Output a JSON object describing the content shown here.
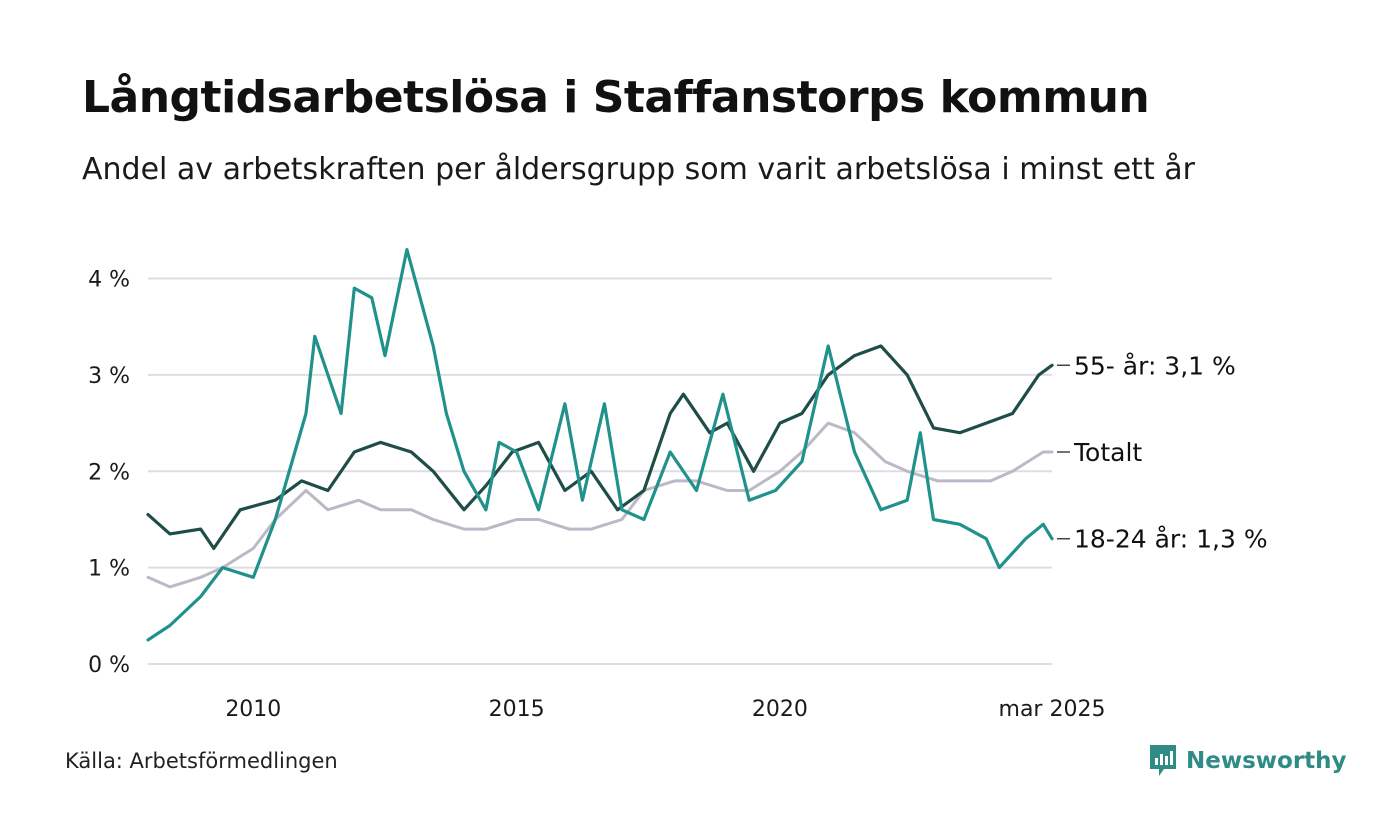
{
  "title": "Långtidsarbetslösa i Staffanstorps kommun",
  "subtitle": "Andel av arbetskraften per åldersgrupp som varit arbetslösa i minst ett år",
  "source": "Källa: Arbetsförmedlingen",
  "brand": "Newsworthy",
  "chart_data": {
    "type": "line",
    "x_start": "2008-01",
    "x_end": "2025-03",
    "x_ticks": [
      {
        "x": "2010-01",
        "label": "2010"
      },
      {
        "x": "2015-01",
        "label": "2015"
      },
      {
        "x": "2020-01",
        "label": "2020"
      },
      {
        "x": "2025-03",
        "label": "mar 2025"
      }
    ],
    "ylim": [
      0,
      4.4
    ],
    "y_ticks": [
      {
        "value": 0,
        "label": "0 %"
      },
      {
        "value": 1,
        "label": "1 %"
      },
      {
        "value": 2,
        "label": "2 %"
      },
      {
        "value": 3,
        "label": "3 %"
      },
      {
        "value": 4,
        "label": "4 %"
      }
    ],
    "grid": true,
    "series": [
      {
        "name": "Totalt",
        "end_label": "Totalt",
        "color": "#bdb8c6",
        "stroke": 3,
        "points": [
          [
            "2008-01",
            0.9
          ],
          [
            "2008-06",
            0.8
          ],
          [
            "2009-01",
            0.9
          ],
          [
            "2009-06",
            1.0
          ],
          [
            "2010-01",
            1.2
          ],
          [
            "2010-06",
            1.5
          ],
          [
            "2011-01",
            1.8
          ],
          [
            "2011-06",
            1.6
          ],
          [
            "2012-01",
            1.7
          ],
          [
            "2012-06",
            1.6
          ],
          [
            "2013-01",
            1.6
          ],
          [
            "2013-06",
            1.5
          ],
          [
            "2014-01",
            1.4
          ],
          [
            "2014-06",
            1.4
          ],
          [
            "2015-01",
            1.5
          ],
          [
            "2015-06",
            1.5
          ],
          [
            "2016-01",
            1.4
          ],
          [
            "2016-06",
            1.4
          ],
          [
            "2017-01",
            1.5
          ],
          [
            "2017-06",
            1.8
          ],
          [
            "2018-01",
            1.9
          ],
          [
            "2018-06",
            1.9
          ],
          [
            "2019-01",
            1.8
          ],
          [
            "2019-06",
            1.8
          ],
          [
            "2020-01",
            2.0
          ],
          [
            "2020-06",
            2.2
          ],
          [
            "2020-12",
            2.5
          ],
          [
            "2021-06",
            2.4
          ],
          [
            "2022-01",
            2.1
          ],
          [
            "2022-06",
            2.0
          ],
          [
            "2023-01",
            1.9
          ],
          [
            "2023-06",
            1.9
          ],
          [
            "2024-01",
            1.9
          ],
          [
            "2024-06",
            2.0
          ],
          [
            "2025-01",
            2.2
          ],
          [
            "2025-03",
            2.2
          ]
        ]
      },
      {
        "name": "55- år",
        "end_label": "55- år: 3,1 %",
        "color": "#1f4d47",
        "stroke": 3.2,
        "points": [
          [
            "2008-01",
            1.55
          ],
          [
            "2008-06",
            1.35
          ],
          [
            "2009-01",
            1.4
          ],
          [
            "2009-04",
            1.2
          ],
          [
            "2009-10",
            1.6
          ],
          [
            "2010-06",
            1.7
          ],
          [
            "2010-12",
            1.9
          ],
          [
            "2011-06",
            1.8
          ],
          [
            "2011-12",
            2.2
          ],
          [
            "2012-06",
            2.3
          ],
          [
            "2013-01",
            2.2
          ],
          [
            "2013-06",
            2.0
          ],
          [
            "2014-01",
            1.6
          ],
          [
            "2014-06",
            1.85
          ],
          [
            "2014-12",
            2.2
          ],
          [
            "2015-06",
            2.3
          ],
          [
            "2015-12",
            1.8
          ],
          [
            "2016-06",
            2.0
          ],
          [
            "2016-12",
            1.6
          ],
          [
            "2017-06",
            1.8
          ],
          [
            "2017-12",
            2.6
          ],
          [
            "2018-03",
            2.8
          ],
          [
            "2018-09",
            2.4
          ],
          [
            "2019-01",
            2.5
          ],
          [
            "2019-07",
            2.0
          ],
          [
            "2020-01",
            2.5
          ],
          [
            "2020-06",
            2.6
          ],
          [
            "2020-12",
            3.0
          ],
          [
            "2021-06",
            3.2
          ],
          [
            "2021-12",
            3.3
          ],
          [
            "2022-06",
            3.0
          ],
          [
            "2022-12",
            2.45
          ],
          [
            "2023-06",
            2.4
          ],
          [
            "2023-12",
            2.5
          ],
          [
            "2024-06",
            2.6
          ],
          [
            "2024-12",
            3.0
          ],
          [
            "2025-03",
            3.1
          ]
        ]
      },
      {
        "name": "18-24 år",
        "end_label": "18-24 år: 1,3 %",
        "color": "#21918c",
        "stroke": 3.2,
        "points": [
          [
            "2008-01",
            0.25
          ],
          [
            "2008-06",
            0.4
          ],
          [
            "2009-01",
            0.7
          ],
          [
            "2009-06",
            1.0
          ],
          [
            "2010-01",
            0.9
          ],
          [
            "2010-06",
            1.5
          ],
          [
            "2011-01",
            2.6
          ],
          [
            "2011-03",
            3.4
          ],
          [
            "2011-09",
            2.6
          ],
          [
            "2011-12",
            3.9
          ],
          [
            "2012-04",
            3.8
          ],
          [
            "2012-07",
            3.2
          ],
          [
            "2012-12",
            4.3
          ],
          [
            "2013-03",
            3.8
          ],
          [
            "2013-06",
            3.3
          ],
          [
            "2013-09",
            2.6
          ],
          [
            "2014-01",
            2.0
          ],
          [
            "2014-06",
            1.6
          ],
          [
            "2014-09",
            2.3
          ],
          [
            "2015-01",
            2.2
          ],
          [
            "2015-06",
            1.6
          ],
          [
            "2015-12",
            2.7
          ],
          [
            "2016-04",
            1.7
          ],
          [
            "2016-09",
            2.7
          ],
          [
            "2017-01",
            1.6
          ],
          [
            "2017-06",
            1.5
          ],
          [
            "2017-12",
            2.2
          ],
          [
            "2018-06",
            1.8
          ],
          [
            "2018-12",
            2.8
          ],
          [
            "2019-06",
            1.7
          ],
          [
            "2019-12",
            1.8
          ],
          [
            "2020-06",
            2.1
          ],
          [
            "2020-12",
            3.3
          ],
          [
            "2021-06",
            2.2
          ],
          [
            "2021-12",
            1.6
          ],
          [
            "2022-06",
            1.7
          ],
          [
            "2022-09",
            2.4
          ],
          [
            "2022-12",
            1.5
          ],
          [
            "2023-06",
            1.45
          ],
          [
            "2023-12",
            1.3
          ],
          [
            "2024-03",
            1.0
          ],
          [
            "2024-09",
            1.3
          ],
          [
            "2025-01",
            1.45
          ],
          [
            "2025-03",
            1.3
          ]
        ]
      }
    ]
  }
}
